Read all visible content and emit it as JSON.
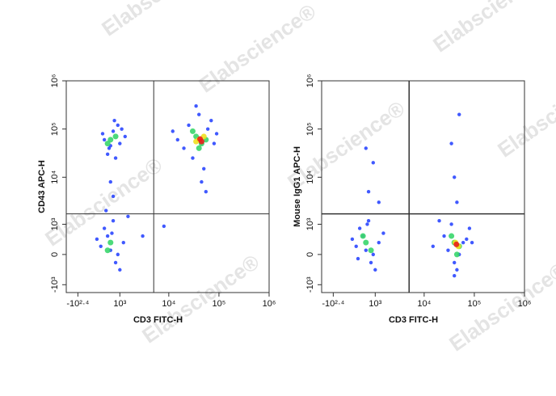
{
  "watermark": "Elabscience®",
  "chart_data": [
    {
      "type": "scatter",
      "xlabel": "CD3 FITC-H",
      "ylabel": "CD43 APC-H",
      "xlim": [
        -600,
        1000000
      ],
      "ylim": [
        -1500,
        1000000
      ],
      "xticks": [
        {
          "value": -251,
          "label": "-10²·⁴"
        },
        {
          "value": 1000,
          "label": "10³"
        },
        {
          "value": 10000,
          "label": "10⁴"
        },
        {
          "value": 100000,
          "label": "10⁵"
        },
        {
          "value": 1000000,
          "label": "10⁶"
        }
      ],
      "yticks": [
        {
          "value": -1000,
          "label": "-10³"
        },
        0,
        {
          "value": 1000,
          "label": "10³"
        },
        {
          "value": 10000,
          "label": "10⁴"
        },
        {
          "value": 100000,
          "label": "10⁵"
        },
        {
          "value": 1000000,
          "label": "10⁶"
        }
      ],
      "gates": {
        "x": 5000,
        "y": 1700
      },
      "series": [
        {
          "color": "#1f3cff",
          "x": [
            400,
            700,
            1000,
            500,
            900,
            1300,
            600,
            800,
            350,
            1100,
            750,
            550,
            15000,
            25000,
            40000,
            60000,
            80000,
            30000,
            50000,
            20000,
            70000,
            45000,
            35000,
            55000,
            90000,
            12000,
            300,
            500,
            800,
            1200,
            400,
            600,
            900,
            700,
            200,
            1000,
            650,
            450,
            700,
            600,
            1500,
            8000,
            3000
          ],
          "y": [
            60000,
            90000,
            50000,
            30000,
            120000,
            70000,
            45000,
            25000,
            80000,
            100000,
            150000,
            40000,
            60000,
            120000,
            200000,
            100000,
            50000,
            25000,
            15000,
            40000,
            150000,
            8000,
            300000,
            5000,
            80000,
            90000,
            200,
            500,
            -200,
            300,
            800,
            100,
            0,
            1200,
            400,
            -400,
            600,
            2000,
            4000,
            8000,
            1500,
            900,
            500
          ]
        },
        {
          "color": "#38d66b",
          "x": [
            600,
            800,
            500,
            35000,
            45000,
            30000,
            55000,
            40000,
            600,
            500
          ],
          "y": [
            60000,
            70000,
            50000,
            70000,
            50000,
            90000,
            60000,
            40000,
            300,
            100
          ]
        },
        {
          "color": "#f0e020",
          "x": [
            40000,
            50000,
            35000
          ],
          "y": [
            60000,
            70000,
            55000
          ]
        },
        {
          "color": "#e8201a",
          "x": [
            45000,
            42000
          ],
          "y": [
            55000,
            62000
          ]
        }
      ]
    },
    {
      "type": "scatter",
      "xlabel": "CD3 FITC-H",
      "ylabel": "Mouse IgG1 APC-H",
      "xlim": [
        -600,
        1000000
      ],
      "ylim": [
        -1500,
        1000000
      ],
      "xticks": [
        {
          "value": -251,
          "label": "-10²·⁴"
        },
        {
          "value": 1000,
          "label": "10³"
        },
        {
          "value": 10000,
          "label": "10⁴"
        },
        {
          "value": 100000,
          "label": "10⁵"
        },
        {
          "value": 1000000,
          "label": "10⁶"
        }
      ],
      "yticks": [
        {
          "value": -1000,
          "label": "-10³"
        },
        0,
        {
          "value": 1000,
          "label": "10³"
        },
        {
          "value": 10000,
          "label": "10⁴"
        },
        {
          "value": 100000,
          "label": "10⁵"
        },
        {
          "value": 1000000,
          "label": "10⁶"
        }
      ],
      "gates": {
        "x": 5000,
        "y": 1700
      },
      "series": [
        {
          "color": "#1f3cff",
          "x": [
            300,
            500,
            800,
            1200,
            400,
            600,
            900,
            700,
            200,
            1000,
            1500,
            350,
            650,
            15000,
            25000,
            40000,
            60000,
            80000,
            30000,
            50000,
            20000,
            70000,
            45000,
            35000,
            90000,
            40000,
            700,
            900,
            1200,
            40000,
            35000,
            50000,
            45000,
            600
          ],
          "y": [
            200,
            500,
            -200,
            300,
            800,
            100,
            0,
            1200,
            400,
            -400,
            600,
            -100,
            1000,
            200,
            500,
            -200,
            300,
            800,
            100,
            0,
            1200,
            400,
            -400,
            1000,
            300,
            -600,
            5000,
            20000,
            3000,
            10000,
            50000,
            200000,
            3000,
            40000
          ]
        },
        {
          "color": "#38d66b",
          "x": [
            600,
            800,
            500,
            40000,
            50000,
            35000,
            45000
          ],
          "y": [
            300,
            100,
            500,
            300,
            200,
            500,
            0
          ]
        },
        {
          "color": "#f0e020",
          "x": [
            42000,
            48000
          ],
          "y": [
            300,
            200
          ]
        },
        {
          "color": "#e8201a",
          "x": [
            44000
          ],
          "y": [
            250
          ]
        }
      ]
    }
  ]
}
